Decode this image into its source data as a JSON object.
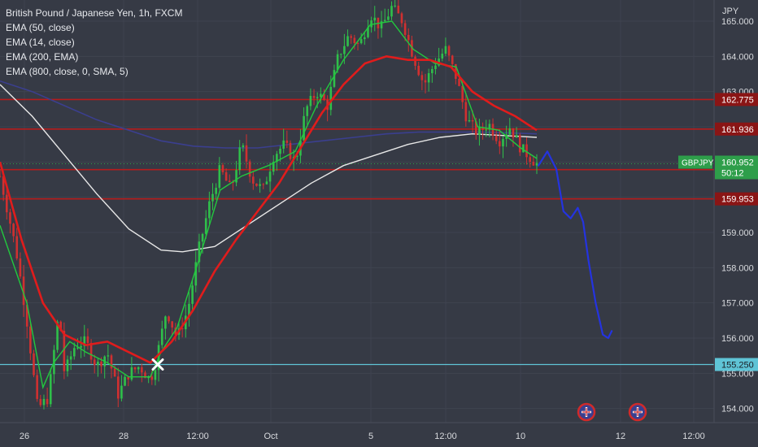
{
  "chart_data": {
    "type": "candlestick",
    "title": "British Pound / Japanese Yen, 1h, FXCM",
    "indicators": [
      "EMA (50, close)",
      "EMA (14, close)",
      "EMA (200, EMA)",
      "EMA (800, close, 0, SMA, 5)"
    ],
    "currency_label": "JPY",
    "ylim": [
      153.6,
      165.6
    ],
    "y_ticks": [
      154.0,
      155.0,
      156.0,
      157.0,
      158.0,
      159.0,
      160.0,
      161.0,
      162.0,
      163.0,
      164.0,
      165.0
    ],
    "y_tick_labels": [
      "154.000",
      "155.000",
      "156.000",
      "157.000",
      "158.000",
      "159.000",
      "160.000",
      "161.000",
      "162.000",
      "163.000",
      "164.000",
      "165.000"
    ],
    "x_tick_labels": [
      "26",
      "28",
      "12:00",
      "Oct",
      "5",
      "12:00",
      "10",
      "12",
      "12:00"
    ],
    "price_levels": [
      {
        "value": 162.775,
        "label": "162.775",
        "color": "#b71c1c"
      },
      {
        "value": 161.936,
        "label": "161.936",
        "color": "#b71c1c"
      },
      {
        "value": 160.785,
        "label": "160.785",
        "color": "#b71c1c"
      },
      {
        "value": 159.953,
        "label": "159.953",
        "color": "#b71c1c"
      },
      {
        "value": 155.25,
        "label": "155.250",
        "color": "#5fc4d6"
      }
    ],
    "last_price": {
      "symbol": "GBPJPY",
      "value": "160.952",
      "countdown": "50:12",
      "color": "#2e9e4a"
    },
    "price_path": [
      [
        0,
        160.6
      ],
      [
        0.03,
        158.5
      ],
      [
        0.05,
        156.5
      ],
      [
        0.07,
        154.0
      ],
      [
        0.09,
        154.3
      ],
      [
        0.11,
        156.8
      ],
      [
        0.12,
        155.0
      ],
      [
        0.14,
        155.8
      ],
      [
        0.16,
        155.9
      ],
      [
        0.18,
        155.2
      ],
      [
        0.2,
        155.6
      ],
      [
        0.22,
        154.4
      ],
      [
        0.24,
        155.0
      ],
      [
        0.26,
        155.2
      ],
      [
        0.28,
        154.8
      ],
      [
        0.29,
        155.3
      ],
      [
        0.31,
        156.8
      ],
      [
        0.33,
        156.0
      ],
      [
        0.35,
        156.8
      ],
      [
        0.37,
        158.5
      ],
      [
        0.39,
        159.8
      ],
      [
        0.41,
        160.8
      ],
      [
        0.43,
        160.2
      ],
      [
        0.45,
        161.5
      ],
      [
        0.47,
        160.5
      ],
      [
        0.49,
        160.2
      ],
      [
        0.51,
        161.2
      ],
      [
        0.53,
        161.5
      ],
      [
        0.55,
        161.0
      ],
      [
        0.57,
        162.5
      ],
      [
        0.59,
        163.0
      ],
      [
        0.61,
        162.6
      ],
      [
        0.63,
        164.0
      ],
      [
        0.65,
        164.6
      ],
      [
        0.67,
        164.3
      ],
      [
        0.69,
        165.2
      ],
      [
        0.71,
        164.8
      ],
      [
        0.73,
        165.4
      ],
      [
        0.75,
        165.0
      ],
      [
        0.77,
        164.0
      ],
      [
        0.79,
        163.2
      ],
      [
        0.81,
        163.8
      ],
      [
        0.83,
        164.2
      ],
      [
        0.85,
        163.4
      ],
      [
        0.87,
        162.2
      ],
      [
        0.89,
        161.8
      ],
      [
        0.91,
        162.1
      ],
      [
        0.93,
        161.6
      ],
      [
        0.95,
        162.0
      ],
      [
        0.97,
        161.4
      ],
      [
        1.0,
        160.95
      ]
    ],
    "ema_14": [
      [
        0,
        159.2
      ],
      [
        0.05,
        157.0
      ],
      [
        0.08,
        154.6
      ],
      [
        0.1,
        155.3
      ],
      [
        0.13,
        155.9
      ],
      [
        0.16,
        155.6
      ],
      [
        0.2,
        155.3
      ],
      [
        0.24,
        154.9
      ],
      [
        0.28,
        154.9
      ],
      [
        0.3,
        155.6
      ],
      [
        0.33,
        156.3
      ],
      [
        0.37,
        158.2
      ],
      [
        0.41,
        160.2
      ],
      [
        0.45,
        160.6
      ],
      [
        0.5,
        160.9
      ],
      [
        0.55,
        161.3
      ],
      [
        0.59,
        162.6
      ],
      [
        0.64,
        163.9
      ],
      [
        0.69,
        164.9
      ],
      [
        0.73,
        165.0
      ],
      [
        0.77,
        164.2
      ],
      [
        0.81,
        163.8
      ],
      [
        0.85,
        163.7
      ],
      [
        0.89,
        162.0
      ],
      [
        0.93,
        161.9
      ],
      [
        0.97,
        161.4
      ],
      [
        1.0,
        161.1
      ]
    ],
    "ema_50": [
      [
        0,
        161.0
      ],
      [
        0.04,
        158.8
      ],
      [
        0.08,
        157.0
      ],
      [
        0.12,
        156.1
      ],
      [
        0.16,
        155.8
      ],
      [
        0.2,
        155.9
      ],
      [
        0.24,
        155.6
      ],
      [
        0.28,
        155.3
      ],
      [
        0.32,
        155.9
      ],
      [
        0.36,
        156.8
      ],
      [
        0.4,
        157.9
      ],
      [
        0.44,
        158.8
      ],
      [
        0.48,
        159.6
      ],
      [
        0.52,
        160.4
      ],
      [
        0.56,
        161.4
      ],
      [
        0.6,
        162.4
      ],
      [
        0.64,
        163.2
      ],
      [
        0.68,
        163.8
      ],
      [
        0.72,
        164.0
      ],
      [
        0.76,
        163.9
      ],
      [
        0.8,
        163.9
      ],
      [
        0.84,
        163.7
      ],
      [
        0.88,
        163.0
      ],
      [
        0.92,
        162.6
      ],
      [
        0.96,
        162.3
      ],
      [
        1.0,
        161.9
      ]
    ],
    "ema_200": [
      [
        0,
        163.2
      ],
      [
        0.06,
        162.3
      ],
      [
        0.12,
        161.2
      ],
      [
        0.18,
        160.1
      ],
      [
        0.24,
        159.1
      ],
      [
        0.3,
        158.5
      ],
      [
        0.34,
        158.45
      ],
      [
        0.4,
        158.6
      ],
      [
        0.46,
        159.2
      ],
      [
        0.52,
        159.8
      ],
      [
        0.58,
        160.4
      ],
      [
        0.64,
        160.9
      ],
      [
        0.7,
        161.2
      ],
      [
        0.76,
        161.5
      ],
      [
        0.82,
        161.7
      ],
      [
        0.88,
        161.8
      ],
      [
        0.94,
        161.75
      ],
      [
        1.0,
        161.7
      ]
    ],
    "ema_800": [
      [
        0,
        163.3
      ],
      [
        0.06,
        163.0
      ],
      [
        0.12,
        162.6
      ],
      [
        0.18,
        162.2
      ],
      [
        0.24,
        161.9
      ],
      [
        0.3,
        161.6
      ],
      [
        0.36,
        161.45
      ],
      [
        0.42,
        161.4
      ],
      [
        0.48,
        161.4
      ],
      [
        0.54,
        161.5
      ],
      [
        0.6,
        161.6
      ],
      [
        0.66,
        161.7
      ],
      [
        0.72,
        161.8
      ],
      [
        0.78,
        161.85
      ],
      [
        0.84,
        161.85
      ],
      [
        0.9,
        161.85
      ],
      [
        1.0,
        161.8
      ]
    ],
    "forecast_path": [
      [
        0,
        160.9
      ],
      [
        0.1,
        161.3
      ],
      [
        0.2,
        160.8
      ],
      [
        0.28,
        159.6
      ],
      [
        0.36,
        159.4
      ],
      [
        0.44,
        159.7
      ],
      [
        0.5,
        159.3
      ],
      [
        0.56,
        158.2
      ],
      [
        0.64,
        157.0
      ],
      [
        0.72,
        156.1
      ],
      [
        0.78,
        156.0
      ],
      [
        0.82,
        156.2
      ]
    ]
  }
}
